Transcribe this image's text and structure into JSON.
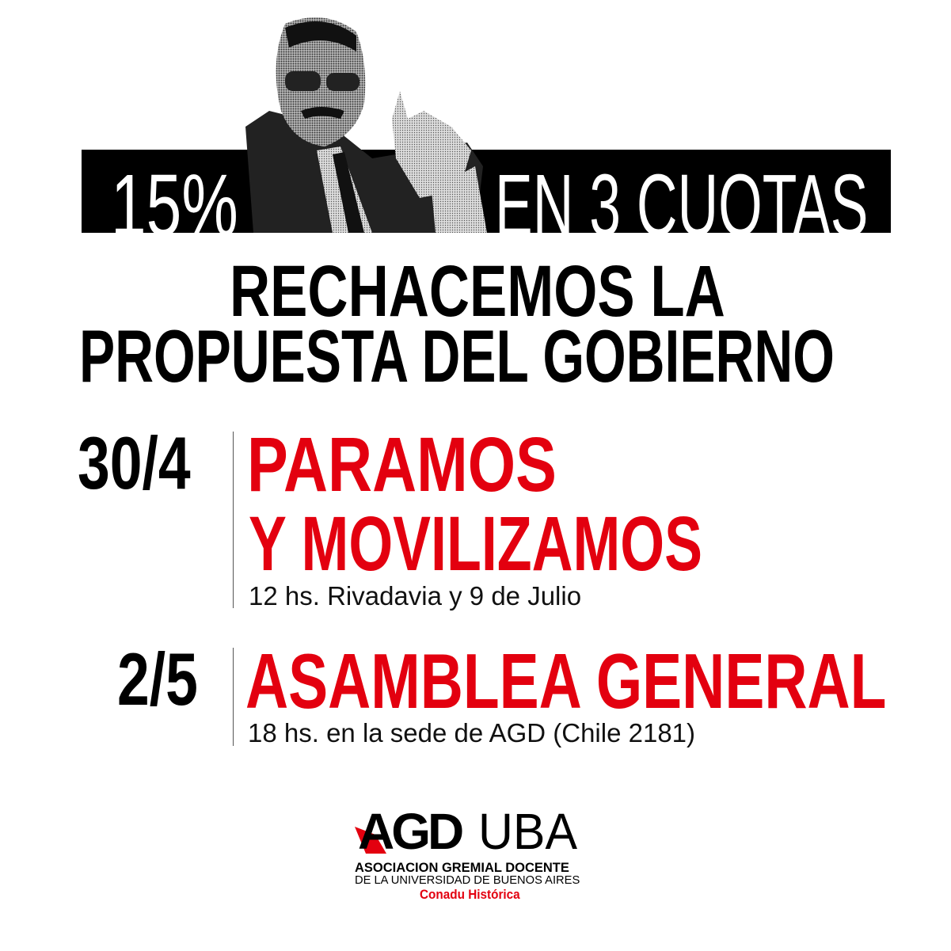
{
  "banner": {
    "left_text": "15%",
    "right_text": "EN 3 CUOTAS"
  },
  "headline": {
    "line1": "RECHACEMOS LA",
    "line2": "PROPUESTA DEL GOBIERNO"
  },
  "events": [
    {
      "date": "30/4",
      "title_line1": "PARAMOS",
      "title_line2": "Y MOVILIZAMOS",
      "detail": "12 hs. Rivadavia y 9 de Julio"
    },
    {
      "date": "2/5",
      "title_line1": "ASAMBLEA GENERAL",
      "detail": "18 hs. en la sede de AGD (Chile 2181)"
    }
  ],
  "logo": {
    "agd": "AGD",
    "uba": "UBA",
    "line1": "ASOCIACION GREMIAL DOCENTE",
    "line2": "DE LA UNIVERSIDAD DE BUENOS AIRES",
    "line3": "Conadu Histórica"
  },
  "colors": {
    "accent": "#e3000f",
    "banner": "#000000"
  }
}
